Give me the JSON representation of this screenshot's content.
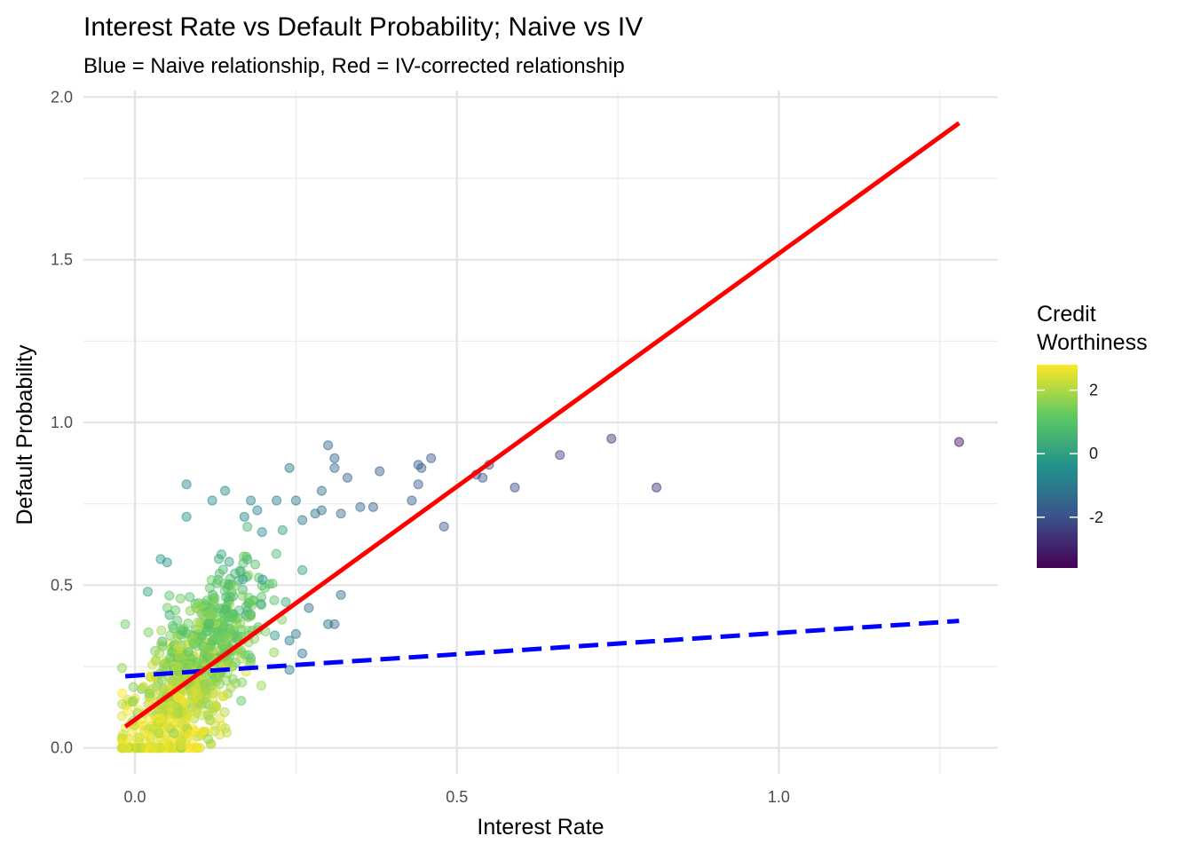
{
  "chart_data": {
    "type": "scatter",
    "title": "Interest Rate vs Default Probability; Naive vs IV",
    "subtitle": "Blue = Naive relationship, Red = IV-corrected relationship",
    "xlabel": "Interest Rate",
    "ylabel": "Default Probability",
    "xlim": [
      -0.08,
      1.34
    ],
    "ylim": [
      -0.08,
      2.02
    ],
    "x_ticks": [
      0.0,
      0.5,
      1.0
    ],
    "x_tick_labels": [
      "0.0",
      "0.5",
      "1.0"
    ],
    "y_ticks": [
      0.0,
      0.5,
      1.0,
      1.5,
      2.0
    ],
    "y_tick_labels": [
      "0.0",
      "0.5",
      "1.0",
      "1.5",
      "2.0"
    ],
    "grid": true,
    "legend": {
      "title_lines": [
        "Credit",
        "Worthiness"
      ],
      "position": "right",
      "range": [
        -3.6,
        2.8
      ],
      "ticks": [
        2,
        0,
        -2
      ],
      "tick_labels": [
        "2",
        "0",
        "-2"
      ]
    },
    "colors": {
      "naive_line": "#0000ff",
      "iv_line": "#ff0000",
      "viridis": [
        "#440154",
        "#3b528b",
        "#21918c",
        "#5ec962",
        "#fde725"
      ]
    },
    "lines": [
      {
        "key": "naive",
        "style": "dashed",
        "x": [
          -0.015,
          1.28
        ],
        "y": [
          0.22,
          0.39
        ]
      },
      {
        "key": "iv",
        "style": "solid",
        "x": [
          -0.015,
          1.28
        ],
        "y": [
          0.065,
          1.92
        ]
      }
    ],
    "highlighted_points": [
      [
        -0.015,
        0.38,
        1.3
      ],
      [
        0.08,
        0.81,
        -0.6
      ],
      [
        0.24,
        0.86,
        -1.1
      ],
      [
        0.3,
        0.93,
        -1.5
      ],
      [
        0.31,
        0.89,
        -1.5
      ],
      [
        0.31,
        0.86,
        -1.4
      ],
      [
        0.33,
        0.83,
        -1.6
      ],
      [
        0.38,
        0.85,
        -1.7
      ],
      [
        0.44,
        0.87,
        -1.8
      ],
      [
        0.445,
        0.86,
        -1.8
      ],
      [
        0.46,
        0.89,
        -1.9
      ],
      [
        0.44,
        0.81,
        -1.8
      ],
      [
        0.43,
        0.76,
        -1.7
      ],
      [
        0.48,
        0.68,
        -1.9
      ],
      [
        0.53,
        0.84,
        -2.0
      ],
      [
        0.54,
        0.83,
        -2.0
      ],
      [
        0.55,
        0.87,
        -2.1
      ],
      [
        0.59,
        0.8,
        -2.2
      ],
      [
        0.66,
        0.9,
        -2.4
      ],
      [
        0.74,
        0.95,
        -2.6
      ],
      [
        0.81,
        0.8,
        -2.8
      ],
      [
        1.28,
        0.94,
        -3.4
      ],
      [
        0.3,
        0.38,
        -1.3
      ],
      [
        0.31,
        0.38,
        -1.3
      ],
      [
        0.32,
        0.47,
        -1.3
      ],
      [
        0.27,
        0.43,
        -1.2
      ],
      [
        0.24,
        0.24,
        -1.0
      ],
      [
        0.25,
        0.35,
        -1.1
      ],
      [
        0.26,
        0.29,
        -1.1
      ],
      [
        0.24,
        0.33,
        -1.0
      ],
      [
        0.17,
        0.71,
        -0.7
      ],
      [
        0.14,
        0.79,
        -0.6
      ],
      [
        0.18,
        0.76,
        -0.7
      ],
      [
        0.22,
        0.76,
        -0.9
      ],
      [
        0.25,
        0.76,
        -1.0
      ],
      [
        0.26,
        0.7,
        -1.0
      ],
      [
        0.28,
        0.72,
        -1.1
      ],
      [
        0.29,
        0.73,
        -1.2
      ],
      [
        0.29,
        0.79,
        -1.2
      ],
      [
        0.32,
        0.72,
        -1.3
      ],
      [
        0.35,
        0.74,
        -1.5
      ],
      [
        0.37,
        0.74,
        -1.6
      ],
      [
        0.08,
        0.71,
        -0.4
      ],
      [
        0.12,
        0.76,
        -0.5
      ],
      [
        0.05,
        0.57,
        -0.2
      ],
      [
        0.04,
        0.58,
        -0.2
      ],
      [
        0.02,
        0.48,
        0.1
      ],
      [
        0.19,
        0.73,
        -0.8
      ]
    ],
    "cloud": {
      "n": 860,
      "x_mean": 0.085,
      "x_sd": 0.055,
      "x_min": -0.02,
      "x_max": 0.26,
      "y_base": 0.02,
      "y_slope": 2.2,
      "y_sd": 0.12,
      "y_min": 0.0,
      "y_max": 0.82
    }
  }
}
